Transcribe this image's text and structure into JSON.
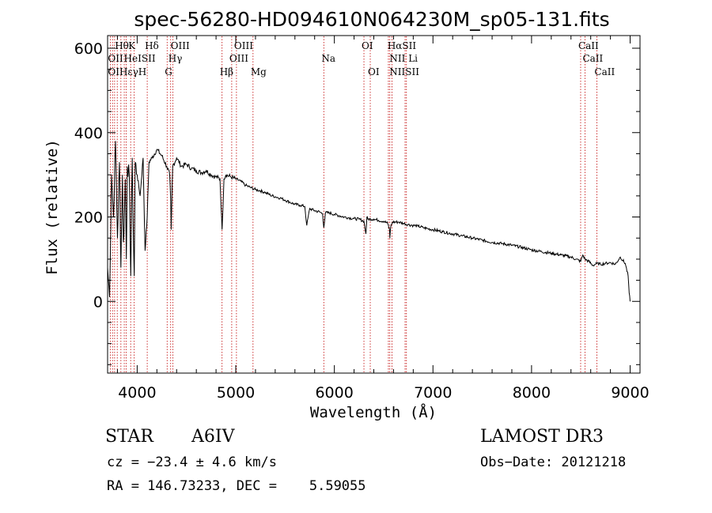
{
  "chart_data": {
    "type": "line",
    "title": "spec-56280-HD094610N064230M_sp05-131.fits",
    "xlabel": "Wavelength (Å)",
    "ylabel": "Flux (relative)",
    "xlim": [
      3700,
      9100
    ],
    "ylim": [
      -170,
      630
    ],
    "xticks": [
      4000,
      5000,
      6000,
      7000,
      8000,
      9000
    ],
    "yticks": [
      0,
      200,
      400,
      600
    ],
    "series": [
      {
        "name": "flux",
        "x": [
          3700,
          3720,
          3740,
          3760,
          3780,
          3800,
          3820,
          3835,
          3850,
          3860,
          3870,
          3880,
          3890,
          3900,
          3920,
          3935,
          3950,
          3960,
          3970,
          3980,
          4000,
          4030,
          4060,
          4080,
          4102,
          4120,
          4150,
          4200,
          4250,
          4300,
          4330,
          4340,
          4345,
          4360,
          4400,
          4450,
          4500,
          4550,
          4600,
          4650,
          4700,
          4750,
          4800,
          4840,
          4861,
          4880,
          4900,
          4950,
          5000,
          5050,
          5100,
          5150,
          5200,
          5250,
          5300,
          5350,
          5400,
          5450,
          5500,
          5550,
          5600,
          5650,
          5700,
          5720,
          5750,
          5800,
          5850,
          5880,
          5893,
          5910,
          5950,
          6000,
          6050,
          6100,
          6150,
          6200,
          6250,
          6300,
          6320,
          6330,
          6340,
          6400,
          6450,
          6500,
          6540,
          6560,
          6563,
          6570,
          6590,
          6650,
          6700,
          6750,
          6800,
          6850,
          6900,
          6950,
          7000,
          7100,
          7200,
          7300,
          7400,
          7500,
          7600,
          7700,
          7800,
          7900,
          8000,
          8100,
          8200,
          8300,
          8400,
          8450,
          8498,
          8520,
          8542,
          8580,
          8620,
          8662,
          8700,
          8750,
          8800,
          8850,
          8900,
          8950,
          8980,
          8990,
          9000
        ],
        "values": [
          80,
          10,
          300,
          200,
          380,
          150,
          330,
          80,
          300,
          140,
          200,
          290,
          100,
          320,
          300,
          60,
          340,
          180,
          60,
          330,
          300,
          250,
          340,
          120,
          200,
          330,
          340,
          360,
          345,
          320,
          300,
          240,
          170,
          320,
          340,
          320,
          325,
          315,
          310,
          305,
          310,
          300,
          295,
          290,
          170,
          290,
          300,
          295,
          290,
          285,
          275,
          270,
          265,
          262,
          258,
          252,
          248,
          245,
          240,
          235,
          230,
          228,
          225,
          180,
          220,
          215,
          212,
          208,
          175,
          210,
          210,
          206,
          203,
          200,
          198,
          196,
          195,
          190,
          160,
          200,
          195,
          195,
          192,
          190,
          185,
          170,
          150,
          175,
          188,
          188,
          185,
          182,
          180,
          178,
          175,
          172,
          170,
          165,
          160,
          155,
          150,
          145,
          140,
          137,
          133,
          128,
          122,
          118,
          114,
          110,
          105,
          100,
          95,
          110,
          100,
          95,
          85,
          90,
          88,
          90,
          92,
          88,
          105,
          90,
          60,
          20,
          0
        ]
      }
    ],
    "lines": [
      {
        "label": "Hθ",
        "x": 3798,
        "row": 1
      },
      {
        "label": "K",
        "x": 3934,
        "row": 1
      },
      {
        "label": "Hδ",
        "x": 4102,
        "row": 1
      },
      {
        "label": "OIII",
        "x": 4363,
        "row": 1
      },
      {
        "label": "OIII",
        "x": 5007,
        "row": 1
      },
      {
        "label": "OI",
        "x": 6300,
        "row": 1
      },
      {
        "label": "HαSII",
        "x": 6563,
        "row": 1
      },
      {
        "label": "CaII",
        "x": 8498,
        "row": 1
      },
      {
        "label": "OII",
        "x": 3727,
        "row": 2
      },
      {
        "label": "HeISII",
        "x": 3889,
        "row": 2
      },
      {
        "label": "Hγ",
        "x": 4340,
        "row": 2
      },
      {
        "label": "OIII",
        "x": 4959,
        "row": 2
      },
      {
        "label": "Na",
        "x": 5893,
        "row": 2
      },
      {
        "label": "NII Li",
        "x": 6584,
        "row": 2
      },
      {
        "label": "CaII",
        "x": 8542,
        "row": 2
      },
      {
        "label": "OIHεγH",
        "x": 3727,
        "row": 3
      },
      {
        "label": "G",
        "x": 4304,
        "row": 3
      },
      {
        "label": "Hβ",
        "x": 4861,
        "row": 3
      },
      {
        "label": "Mg",
        "x": 5175,
        "row": 3
      },
      {
        "label": "OI",
        "x": 6364,
        "row": 3
      },
      {
        "label": "NIISII",
        "x": 6583,
        "row": 3
      },
      {
        "label": "CaII",
        "x": 8662,
        "row": 3
      }
    ],
    "line_x": [
      3727,
      3750,
      3771,
      3798,
      3835,
      3869,
      3889,
      3934,
      3970,
      4102,
      4304,
      4340,
      4363,
      4861,
      4959,
      5007,
      5175,
      5893,
      6300,
      6364,
      6548,
      6563,
      6584,
      6717,
      6731,
      8498,
      8542,
      8662
    ],
    "line_color": "#c00000"
  },
  "info": {
    "object_class": "STAR",
    "subclass": "A6IV",
    "survey": "LAMOST DR3",
    "cz": "cz = −23.4 ± 4.6 km/s",
    "obs_date": "Obs−Date: 20121218",
    "radec": "RA = 146.73233, DEC =    5.59055"
  }
}
